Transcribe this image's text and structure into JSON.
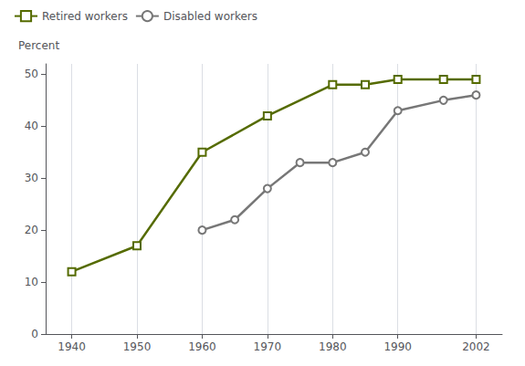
{
  "chart_data": {
    "type": "line",
    "ylabel": "Percent",
    "series": [
      {
        "name": "Retired workers",
        "color": "#556B00",
        "marker": "square",
        "x": [
          1940,
          1950,
          1960,
          1970,
          1980,
          1985,
          1990,
          1997,
          2002
        ],
        "values": [
          12,
          17,
          35,
          42,
          48,
          48,
          49,
          49,
          49
        ]
      },
      {
        "name": "Disabled workers",
        "color": "#777777",
        "marker": "circle",
        "x": [
          1960,
          1965,
          1970,
          1975,
          1980,
          1985,
          1990,
          1997,
          2002
        ],
        "values": [
          20,
          22,
          28,
          33,
          33,
          35,
          43,
          45,
          46
        ]
      }
    ],
    "xlim": [
      1936,
      2006
    ],
    "xticks": [
      1940,
      1950,
      1960,
      1970,
      1980,
      1990,
      2002
    ],
    "ylim": [
      0,
      52
    ],
    "yticks": [
      0,
      10,
      20,
      30,
      40,
      50
    ],
    "grid": true,
    "legend": "upper left"
  }
}
